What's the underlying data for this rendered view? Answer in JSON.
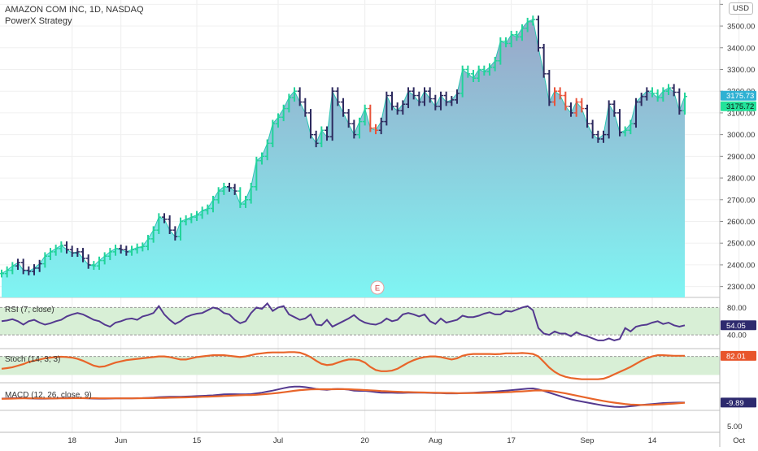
{
  "header": {
    "title": "AMAZON COM INC, 1D, NASDAQ",
    "strategy": "PowerX Strategy",
    "currency": "USD"
  },
  "event_marker": "E",
  "colors": {
    "up": "#22d39a",
    "down": "#2d2a5e",
    "warn": "#e8533a",
    "area_top": "#9aa6c8",
    "area_bottom": "#7ff5f3",
    "rsi_band": "#d8efd6",
    "macd_line": "#54398f",
    "signal_line": "#e8652a",
    "badge_blue": "#2fb1d3",
    "badge_green": "#22e39a",
    "badge_navy": "#2d2a6e",
    "badge_red": "#e8552b"
  },
  "chart_data": [
    {
      "type": "line",
      "name": "price",
      "ylim": [
        2250,
        3620
      ],
      "y_ticks": [
        2300,
        2400,
        2500,
        2600,
        2700,
        2800,
        2900,
        3000,
        3100,
        3200,
        3300,
        3400,
        3500,
        3600
      ],
      "y_tick_labels": [
        "2300.00",
        "2400.00",
        "2500.00",
        "2600.00",
        "2700.00",
        "2800.00",
        "2900.00",
        "3000.00",
        "3100.00",
        "3200.00",
        "3300.00",
        "3400.00",
        "3500.00",
        ""
      ],
      "x_ticks": [
        {
          "label": "18",
          "index": 13
        },
        {
          "label": "Jun",
          "index": 22
        },
        {
          "label": "15",
          "index": 36
        },
        {
          "label": "Jul",
          "index": 51
        },
        {
          "label": "20",
          "index": 67
        },
        {
          "label": "Aug",
          "index": 80
        },
        {
          "label": "17",
          "index": 94
        },
        {
          "label": "Sep",
          "index": 108
        },
        {
          "label": "14",
          "index": 120
        },
        {
          "label": "Oct",
          "index": 136
        }
      ],
      "close": [
        2360,
        2375,
        2395,
        2410,
        2375,
        2370,
        2385,
        2405,
        2440,
        2460,
        2475,
        2490,
        2470,
        2455,
        2460,
        2430,
        2400,
        2395,
        2420,
        2440,
        2460,
        2475,
        2470,
        2460,
        2470,
        2480,
        2485,
        2520,
        2560,
        2620,
        2610,
        2560,
        2530,
        2600,
        2610,
        2620,
        2630,
        2650,
        2660,
        2700,
        2740,
        2760,
        2755,
        2740,
        2680,
        2700,
        2760,
        2880,
        2900,
        2960,
        3050,
        3080,
        3120,
        3170,
        3200,
        3150,
        3100,
        3000,
        2960,
        3020,
        2990,
        3200,
        3150,
        3100,
        3050,
        3000,
        3060,
        3120,
        3030,
        3020,
        3060,
        3180,
        3130,
        3110,
        3140,
        3200,
        3180,
        3150,
        3200,
        3165,
        3130,
        3180,
        3150,
        3160,
        3190,
        3300,
        3280,
        3260,
        3300,
        3290,
        3310,
        3340,
        3430,
        3420,
        3460,
        3450,
        3490,
        3520,
        3530,
        3400,
        3280,
        3150,
        3200,
        3180,
        3130,
        3100,
        3150,
        3120,
        3050,
        3000,
        2980,
        3000,
        3140,
        3100,
        3010,
        3020,
        3050,
        3150,
        3175,
        3200,
        3190,
        3170,
        3200,
        3215,
        3195,
        3110,
        3175.73
      ],
      "last_price": "3175.73",
      "strategy_price": "3175.72",
      "colors": [
        "up",
        "up",
        "up",
        "down",
        "down",
        "down",
        "down",
        "down",
        "up",
        "up",
        "up",
        "up",
        "down",
        "down",
        "down",
        "down",
        "down",
        "up",
        "up",
        "up",
        "up",
        "up",
        "down",
        "down",
        "up",
        "up",
        "up",
        "up",
        "up",
        "up",
        "down",
        "down",
        "down",
        "up",
        "up",
        "up",
        "up",
        "up",
        "up",
        "up",
        "up",
        "up",
        "down",
        "down",
        "up",
        "up",
        "up",
        "up",
        "up",
        "up",
        "up",
        "up",
        "up",
        "up",
        "up",
        "down",
        "down",
        "down",
        "down",
        "up",
        "down",
        "down",
        "down",
        "down",
        "down",
        "down",
        "up",
        "up",
        "warn",
        "warn",
        "down",
        "down",
        "down",
        "down",
        "down",
        "down",
        "down",
        "down",
        "down",
        "down",
        "down",
        "down",
        "down",
        "down",
        "down",
        "up",
        "up",
        "up",
        "up",
        "up",
        "up",
        "up",
        "up",
        "up",
        "up",
        "up",
        "up",
        "up",
        "up",
        "down",
        "down",
        "down",
        "warn",
        "warn",
        "warn",
        "down",
        "warn",
        "warn",
        "down",
        "down",
        "down",
        "down",
        "down",
        "down",
        "down",
        "up",
        "up",
        "down",
        "down",
        "down",
        "up",
        "up",
        "up",
        "up",
        "down",
        "down",
        "up"
      ]
    },
    {
      "type": "line",
      "name": "RSI (7, close)",
      "band": [
        40,
        80
      ],
      "y_ticks": [
        "80.00",
        "40.00"
      ],
      "last_value": "54.05",
      "values": [
        60,
        61,
        63,
        60,
        55,
        60,
        62,
        58,
        55,
        57,
        60,
        62,
        67,
        70,
        72,
        70,
        66,
        62,
        60,
        55,
        52,
        58,
        60,
        63,
        64,
        62,
        67,
        69,
        72,
        82,
        70,
        62,
        56,
        60,
        66,
        69,
        71,
        72,
        76,
        80,
        78,
        72,
        70,
        62,
        57,
        60,
        72,
        80,
        78,
        86,
        75,
        80,
        82,
        70,
        66,
        62,
        64,
        70,
        55,
        54,
        62,
        52,
        56,
        60,
        64,
        69,
        62,
        58,
        56,
        55,
        58,
        64,
        60,
        62,
        70,
        72,
        70,
        67,
        70,
        60,
        56,
        64,
        58,
        60,
        62,
        68,
        66,
        66,
        68,
        71,
        73,
        70,
        70,
        75,
        74,
        77,
        80,
        82,
        76,
        50,
        42,
        40,
        45,
        42,
        42,
        38,
        44,
        40,
        38,
        35,
        32,
        32,
        35,
        32,
        34,
        50,
        45,
        52,
        54,
        55,
        58,
        60,
        56,
        58,
        54,
        52,
        54.05
      ]
    },
    {
      "type": "line",
      "name": "Stoch (14, 3, 3)",
      "last_value": "82.01",
      "values": [
        40,
        42,
        45,
        50,
        55,
        62,
        66,
        70,
        74,
        76,
        78,
        79,
        78,
        76,
        72,
        66,
        58,
        50,
        46,
        48,
        54,
        60,
        64,
        68,
        70,
        72,
        74,
        76,
        78,
        80,
        80,
        78,
        74,
        70,
        70,
        74,
        78,
        80,
        82,
        84,
        84,
        84,
        82,
        80,
        78,
        80,
        84,
        88,
        90,
        92,
        93,
        93,
        93,
        94,
        94,
        92,
        86,
        78,
        66,
        56,
        52,
        54,
        60,
        66,
        70,
        70,
        68,
        60,
        46,
        36,
        32,
        32,
        34,
        40,
        50,
        60,
        68,
        74,
        78,
        80,
        80,
        78,
        74,
        70,
        74,
        82,
        86,
        88,
        88,
        88,
        88,
        87,
        88,
        90,
        90,
        90,
        91,
        90,
        88,
        80,
        62,
        44,
        30,
        20,
        14,
        10,
        8,
        6,
        6,
        6,
        6,
        8,
        14,
        22,
        30,
        38,
        46,
        56,
        66,
        74,
        80,
        84,
        84,
        83,
        82,
        82,
        82.01
      ]
    },
    {
      "type": "line",
      "name": "MACD (12, 26, close, 9)",
      "last_value": "-9.89",
      "macd": [
        22,
        24,
        25,
        26,
        26,
        24,
        22,
        21,
        21,
        22,
        24,
        26,
        27,
        27,
        26,
        25,
        24,
        22,
        21,
        21,
        22,
        24,
        24,
        24,
        24,
        25,
        26,
        28,
        30,
        33,
        35,
        36,
        36,
        37,
        38,
        40,
        42,
        44,
        46,
        48,
        52,
        56,
        57,
        57,
        56,
        56,
        58,
        64,
        70,
        78,
        86,
        96,
        106,
        114,
        118,
        118,
        114,
        108,
        100,
        96,
        92,
        98,
        100,
        98,
        94,
        86,
        84,
        84,
        80,
        74,
        70,
        70,
        70,
        68,
        68,
        70,
        70,
        69,
        69,
        68,
        66,
        66,
        64,
        64,
        64,
        66,
        68,
        70,
        72,
        74,
        76,
        78,
        82,
        86,
        90,
        94,
        98,
        102,
        104,
        96,
        84,
        70,
        56,
        42,
        28,
        16,
        6,
        -2,
        -10,
        -18,
        -26,
        -34,
        -40,
        -44,
        -46,
        -44,
        -40,
        -36,
        -30,
        -26,
        -22,
        -18,
        -14,
        -12,
        -11,
        -10,
        -9.89
      ],
      "signal": [
        20,
        21,
        22,
        23,
        24,
        24,
        24,
        24,
        23,
        23,
        23,
        24,
        24,
        25,
        25,
        25,
        25,
        25,
        24,
        24,
        24,
        24,
        24,
        24,
        24,
        24,
        25,
        25,
        26,
        27,
        28,
        29,
        30,
        31,
        32,
        33,
        34,
        36,
        37,
        39,
        41,
        43,
        45,
        47,
        49,
        50,
        51,
        53,
        56,
        59,
        63,
        68,
        73,
        79,
        85,
        90,
        93,
        96,
        97,
        97,
        97,
        97,
        98,
        98,
        97,
        95,
        93,
        91,
        89,
        86,
        83,
        81,
        79,
        77,
        75,
        74,
        73,
        72,
        71,
        70,
        69,
        68,
        67,
        67,
        66,
        66,
        66,
        67,
        67,
        68,
        69,
        70,
        71,
        73,
        75,
        78,
        80,
        83,
        86,
        88,
        87,
        84,
        79,
        72,
        64,
        55,
        46,
        37,
        28,
        19,
        11,
        3,
        -5,
        -11,
        -17,
        -22,
        -26,
        -28,
        -29,
        -29,
        -28,
        -26,
        -24,
        -21,
        -18,
        -15,
        -12
      ]
    }
  ],
  "macd_axis": {
    "tick": "5.00"
  }
}
